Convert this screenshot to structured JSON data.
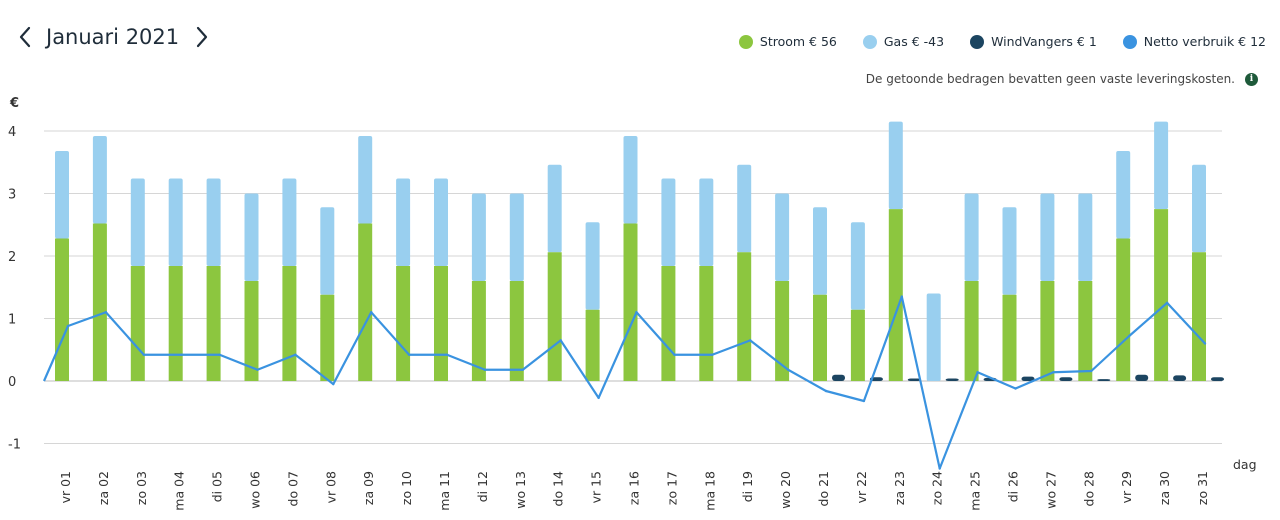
{
  "header": {
    "title": "Januari 2021",
    "prev_icon": "chevron-left-icon",
    "next_icon": "chevron-right-icon"
  },
  "legend": [
    {
      "label": "Stroom € 56",
      "color": "#8cc63f"
    },
    {
      "label": "Gas € -43",
      "color": "#99cfef"
    },
    {
      "label": "WindVangers € 1",
      "color": "#1c4561"
    },
    {
      "label": "Netto verbruik € 12",
      "color": "#3a93e0"
    }
  ],
  "note": {
    "text": "De getoonde bedragen bevatten geen vaste leveringskosten.",
    "icon": "info-icon"
  },
  "chart_data": {
    "type": "bar",
    "ylabel": "€",
    "xlabel": "dag",
    "ylim": [
      -1.2,
      4.2
    ],
    "yticks": [
      4,
      3,
      2,
      1,
      0,
      -1
    ],
    "categories": [
      "vr 01",
      "za 02",
      "zo 03",
      "ma 04",
      "di 05",
      "wo 06",
      "do 07",
      "vr 08",
      "za 09",
      "zo 10",
      "ma 11",
      "di 12",
      "wo 13",
      "do 14",
      "vr 15",
      "za 16",
      "zo 17",
      "ma 18",
      "di 19",
      "wo 20",
      "do 21",
      "vr 22",
      "za 23",
      "zo 24",
      "ma 25",
      "di 26",
      "wo 27",
      "do 28",
      "vr 29",
      "za 30",
      "zo 31"
    ],
    "series": [
      {
        "name": "Stroom",
        "color": "#8cc63f",
        "values": [
          2.28,
          2.52,
          1.84,
          1.84,
          1.84,
          1.6,
          1.84,
          1.38,
          2.52,
          1.84,
          1.84,
          1.6,
          1.6,
          2.06,
          1.14,
          2.52,
          1.84,
          1.84,
          2.06,
          1.6,
          1.38,
          1.14,
          2.75,
          0,
          1.6,
          1.38,
          1.6,
          1.6,
          2.28,
          2.75,
          2.06
        ]
      },
      {
        "name": "Gas",
        "color": "#99cfef",
        "values": [
          1.4,
          1.4,
          1.4,
          1.4,
          1.4,
          1.4,
          1.4,
          1.4,
          1.4,
          1.4,
          1.4,
          1.4,
          1.4,
          1.4,
          1.4,
          1.4,
          1.4,
          1.4,
          1.4,
          1.4,
          1.4,
          1.4,
          1.4,
          1.4,
          1.4,
          1.4,
          1.4,
          1.4,
          1.4,
          1.4,
          1.4
        ]
      },
      {
        "name": "WindVangers",
        "color": "#1c4561",
        "values": [
          0,
          0,
          0,
          0,
          0,
          0,
          0,
          0,
          0,
          0,
          0,
          0,
          0,
          0,
          0,
          0,
          0,
          0,
          0,
          0,
          0.1,
          0.06,
          0.04,
          0.04,
          0.05,
          0.07,
          0.06,
          0.03,
          0.1,
          0.09,
          0.06
        ]
      },
      {
        "name": "Netto verbruik",
        "color": "#3a93e0",
        "values": [
          0.88,
          1.1,
          0.42,
          0.42,
          0.42,
          0.18,
          0.42,
          -0.05,
          1.1,
          0.42,
          0.42,
          0.18,
          0.18,
          0.65,
          -0.27,
          1.1,
          0.42,
          0.42,
          0.65,
          0.18,
          -0.16,
          -0.32,
          1.35,
          -1.4,
          0.14,
          -0.12,
          0.14,
          0.16,
          0.72,
          1.25,
          0.6
        ]
      }
    ]
  }
}
